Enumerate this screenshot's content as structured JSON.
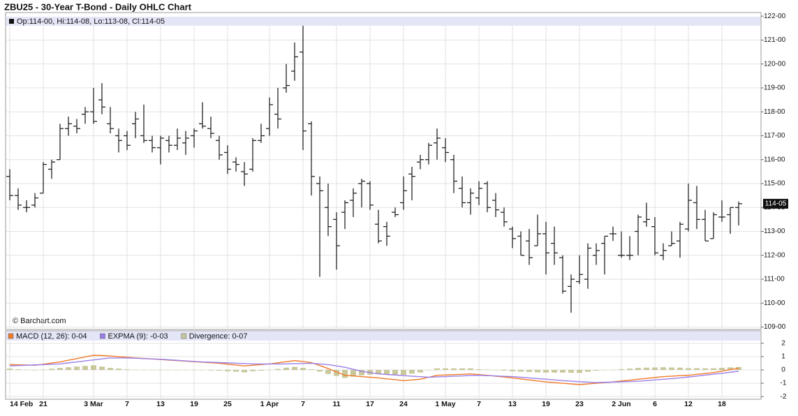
{
  "chart_data": [
    {
      "type": "ohlc",
      "title": "ZBU25 - 30-Year T-Bond - Daily OHLC Chart",
      "info": "Op:114-00, Hi:114-08, Lo:113-08, Cl:114-05",
      "credit": "© Barchart.com",
      "color": "#222222",
      "grid": true,
      "ylim": [
        108.9,
        122.15
      ],
      "yticks": [
        {
          "value": 109,
          "label": "109-00"
        },
        {
          "value": 110,
          "label": "110-00"
        },
        {
          "value": 111,
          "label": "111-00"
        },
        {
          "value": 112,
          "label": "112-00"
        },
        {
          "value": 113,
          "label": "113-00"
        },
        {
          "value": 114,
          "label": "114-00"
        },
        {
          "value": 115,
          "label": "115-00"
        },
        {
          "value": 116,
          "label": "116-00"
        },
        {
          "value": 117,
          "label": "117-00"
        },
        {
          "value": 118,
          "label": "118-00"
        },
        {
          "value": 119,
          "label": "119-00"
        },
        {
          "value": 120,
          "label": "120-00"
        },
        {
          "value": 121,
          "label": "121-00"
        },
        {
          "value": 122,
          "label": "122-00"
        }
      ],
      "last": {
        "value": 114.15625,
        "label": "114-05"
      },
      "open": [
        115.3,
        114.5,
        114.0,
        114.1,
        114.6,
        115.6,
        116.0,
        117.3,
        117.4,
        117.9,
        118.0,
        118.5,
        117.5,
        117.0,
        117.0,
        117.5,
        117.0,
        116.8,
        116.5,
        116.8,
        116.6,
        116.7,
        117.0,
        117.5,
        117.3,
        116.8,
        116.3,
        115.9,
        115.5,
        115.6,
        116.8,
        117.3,
        117.9,
        119.0,
        119.7,
        120.5,
        117.5,
        115.0,
        114.0,
        113.5,
        113.8,
        114.3,
        115.0,
        115.0,
        113.3,
        113.2,
        113.8,
        114.2,
        115.4,
        115.9,
        116.0,
        116.7,
        116.5,
        116.0,
        114.8,
        114.2,
        114.4,
        115.0,
        114.3,
        113.8,
        113.1,
        112.8,
        112.6,
        112.4,
        112.9,
        112.5,
        111.9,
        110.7,
        110.9,
        111.0,
        112.0,
        112.5,
        112.9,
        112.0,
        112.0,
        113.0,
        113.4,
        113.2,
        112.0,
        112.4,
        112.6,
        113.1,
        114.2,
        113.5,
        112.7,
        113.6,
        113.7,
        114.0
      ],
      "high": [
        115.6,
        114.8,
        114.3,
        114.6,
        115.9,
        116.0,
        117.5,
        117.8,
        117.7,
        118.2,
        119.0,
        119.2,
        118.2,
        117.3,
        117.2,
        118.0,
        118.3,
        117.0,
        117.0,
        117.0,
        117.3,
        117.2,
        117.3,
        118.4,
        117.8,
        117.0,
        116.6,
        116.1,
        115.9,
        116.9,
        117.5,
        118.6,
        119.0,
        120.0,
        120.9,
        121.6,
        117.6,
        115.3,
        115.0,
        113.8,
        114.3,
        114.8,
        115.2,
        115.1,
        113.9,
        113.4,
        114.0,
        115.3,
        115.7,
        116.2,
        116.7,
        117.3,
        116.9,
        116.2,
        115.3,
        114.8,
        115.1,
        115.1,
        114.6,
        114.0,
        113.2,
        113.0,
        113.1,
        113.7,
        113.4,
        113.2,
        112.0,
        111.2,
        112.0,
        112.5,
        112.5,
        112.8,
        113.2,
        113.0,
        112.8,
        113.7,
        114.2,
        113.6,
        112.5,
        113.0,
        113.4,
        115.0,
        114.9,
        113.9,
        113.8,
        114.3,
        114.0,
        114.25
      ],
      "low": [
        114.3,
        113.9,
        113.8,
        114.0,
        114.6,
        115.2,
        116.0,
        117.0,
        117.1,
        117.5,
        117.5,
        117.9,
        117.1,
        116.3,
        116.4,
        116.9,
        116.7,
        116.3,
        115.8,
        116.3,
        116.4,
        116.2,
        116.5,
        117.3,
        116.9,
        116.0,
        115.4,
        115.5,
        114.9,
        115.5,
        116.7,
        117.0,
        117.3,
        118.8,
        119.3,
        116.4,
        114.5,
        111.1,
        112.8,
        111.4,
        113.1,
        113.6,
        114.0,
        113.9,
        112.5,
        112.4,
        113.6,
        113.9,
        114.3,
        115.6,
        115.8,
        116.0,
        115.9,
        114.6,
        114.0,
        113.7,
        114.1,
        113.8,
        113.6,
        113.2,
        112.3,
        112.0,
        111.6,
        112.4,
        111.2,
        111.6,
        110.4,
        109.6,
        110.8,
        110.6,
        111.6,
        111.2,
        112.6,
        111.9,
        111.8,
        112.0,
        113.2,
        112.0,
        111.8,
        112.4,
        111.9,
        113.0,
        113.1,
        112.6,
        112.7,
        113.4,
        112.9,
        113.25
      ],
      "close": [
        114.5,
        114.1,
        114.0,
        114.4,
        115.8,
        115.9,
        117.3,
        117.5,
        117.3,
        118.0,
        117.6,
        118.2,
        117.3,
        116.8,
        116.6,
        117.7,
        116.8,
        116.5,
        116.9,
        116.6,
        116.9,
        116.9,
        117.2,
        117.4,
        117.1,
        116.2,
        115.6,
        115.8,
        115.4,
        116.8,
        117.0,
        118.3,
        117.7,
        119.1,
        120.3,
        117.2,
        115.3,
        114.7,
        113.2,
        112.4,
        114.2,
        114.6,
        115.1,
        114.1,
        112.6,
        112.8,
        113.7,
        114.7,
        115.3,
        116.0,
        116.6,
        116.9,
        116.3,
        115.1,
        114.2,
        114.6,
        114.8,
        114.0,
        113.9,
        113.4,
        112.7,
        112.0,
        111.9,
        112.9,
        112.1,
        112.1,
        110.5,
        111.0,
        111.2,
        112.3,
        112.2,
        112.8,
        112.9,
        112.0,
        112.0,
        113.6,
        113.5,
        112.1,
        112.2,
        112.5,
        113.3,
        114.3,
        113.5,
        112.6,
        113.7,
        113.6,
        114.0,
        114.15625
      ]
    },
    {
      "type": "macd",
      "grid": true,
      "ylim": [
        -2.2,
        2.2
      ],
      "yticks": [
        2,
        1,
        0,
        -1,
        -2
      ],
      "categories": [
        "14 Feb",
        null,
        null,
        null,
        "21",
        null,
        null,
        null,
        null,
        null,
        "3 Mar",
        null,
        null,
        null,
        "7",
        null,
        null,
        null,
        "13",
        null,
        null,
        null,
        "19",
        null,
        null,
        null,
        "25",
        null,
        null,
        null,
        null,
        "1 Apr",
        null,
        null,
        null,
        "7",
        null,
        null,
        null,
        "11",
        null,
        null,
        null,
        "17",
        null,
        null,
        null,
        "24",
        null,
        null,
        null,
        null,
        "1 May",
        null,
        null,
        null,
        "7",
        null,
        null,
        null,
        "13",
        null,
        null,
        null,
        "19",
        null,
        null,
        null,
        "23",
        null,
        null,
        null,
        null,
        "2 Jun",
        null,
        null,
        null,
        "6",
        null,
        null,
        null,
        "12",
        null,
        null,
        null,
        "18",
        null,
        null
      ],
      "series": [
        {
          "name": "MACD (12, 26): 0-04",
          "color": "#f07a28",
          "kind": "line",
          "values": [
            0.4,
            0.38,
            0.37,
            0.35,
            0.43,
            0.52,
            0.6,
            0.73,
            0.85,
            0.98,
            1.1,
            1.08,
            1.05,
            1.0,
            0.95,
            0.9,
            0.86,
            0.82,
            0.78,
            0.74,
            0.7,
            0.66,
            0.62,
            0.58,
            0.54,
            0.5,
            0.43,
            0.37,
            0.3,
            0.35,
            0.4,
            0.45,
            0.53,
            0.62,
            0.7,
            0.63,
            0.55,
            0.33,
            0.1,
            -0.15,
            -0.4,
            -0.45,
            -0.5,
            -0.55,
            -0.6,
            -0.67,
            -0.73,
            -0.8,
            -0.75,
            -0.7,
            -0.55,
            -0.4,
            -0.38,
            -0.35,
            -0.33,
            -0.3,
            -0.35,
            -0.4,
            -0.47,
            -0.53,
            -0.6,
            -0.68,
            -0.75,
            -0.83,
            -0.9,
            -0.95,
            -1.0,
            -1.05,
            -1.1,
            -1.05,
            -1.0,
            -0.95,
            -0.9,
            -0.83,
            -0.77,
            -0.7,
            -0.63,
            -0.57,
            -0.5,
            -0.47,
            -0.43,
            -0.4,
            -0.33,
            -0.27,
            -0.2,
            -0.09,
            0.02,
            0.125
          ]
        },
        {
          "name": "EXPMA (9): -0-03",
          "color": "#9b7fe8",
          "kind": "line",
          "values": [
            0.3,
            0.33,
            0.35,
            0.38,
            0.4,
            0.43,
            0.45,
            0.53,
            0.6,
            0.68,
            0.75,
            0.83,
            0.9,
            0.9,
            0.9,
            0.88,
            0.85,
            0.83,
            0.8,
            0.76,
            0.72,
            0.68,
            0.64,
            0.6,
            0.58,
            0.55,
            0.53,
            0.5,
            0.48,
            0.45,
            0.45,
            0.45,
            0.45,
            0.45,
            0.47,
            0.48,
            0.5,
            0.45,
            0.4,
            0.3,
            0.2,
            0.05,
            -0.1,
            -0.2,
            -0.3,
            -0.34,
            -0.38,
            -0.43,
            -0.47,
            -0.51,
            -0.55,
            -0.52,
            -0.5,
            -0.47,
            -0.45,
            -0.42,
            -0.4,
            -0.43,
            -0.45,
            -0.48,
            -0.5,
            -0.55,
            -0.6,
            -0.65,
            -0.7,
            -0.75,
            -0.8,
            -0.84,
            -0.88,
            -0.91,
            -0.95,
            -0.93,
            -0.91,
            -0.89,
            -0.87,
            -0.85,
            -0.8,
            -0.75,
            -0.7,
            -0.65,
            -0.6,
            -0.53,
            -0.46,
            -0.39,
            -0.32,
            -0.25,
            -0.17,
            -0.094
          ]
        },
        {
          "name": "Divergence: 0-07",
          "color": "#c8c89a",
          "kind": "bar",
          "values": [
            0.1,
            0.05,
            0.02,
            -0.03,
            0.03,
            0.09,
            0.15,
            0.2,
            0.25,
            0.3,
            0.35,
            0.25,
            0.15,
            0.1,
            0.05,
            0.02,
            0.01,
            -0.01,
            -0.02,
            -0.02,
            -0.02,
            -0.02,
            -0.02,
            -0.02,
            -0.04,
            -0.05,
            -0.1,
            -0.13,
            -0.18,
            -0.1,
            -0.05,
            0.0,
            0.08,
            0.17,
            0.23,
            0.15,
            0.05,
            -0.12,
            -0.3,
            -0.45,
            -0.6,
            -0.5,
            -0.4,
            -0.35,
            -0.3,
            -0.33,
            -0.35,
            -0.37,
            -0.28,
            -0.19,
            0.0,
            0.12,
            0.12,
            0.12,
            0.12,
            0.12,
            0.05,
            0.03,
            -0.02,
            -0.05,
            -0.1,
            -0.13,
            -0.15,
            -0.18,
            -0.2,
            -0.2,
            -0.2,
            -0.21,
            -0.22,
            -0.14,
            -0.05,
            -0.02,
            0.01,
            0.06,
            0.1,
            0.15,
            0.17,
            0.18,
            0.2,
            0.18,
            0.17,
            0.13,
            0.13,
            0.12,
            0.12,
            0.16,
            0.19,
            0.219
          ]
        }
      ]
    }
  ]
}
